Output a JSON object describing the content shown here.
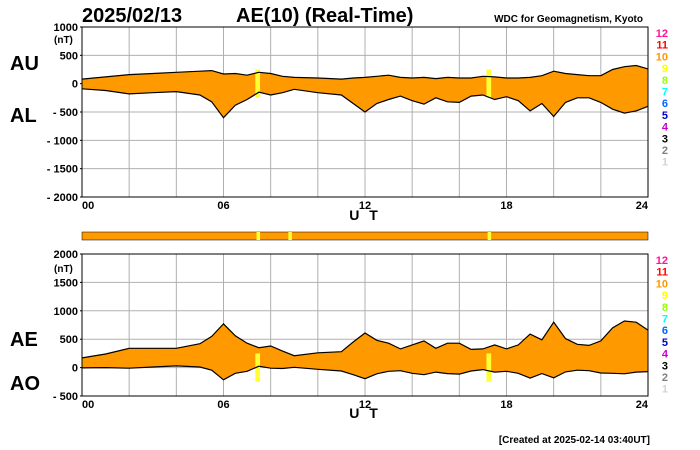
{
  "header": {
    "date": "2025/02/13",
    "title": "AE(10) (Real-Time)",
    "source": "WDC for Geomagnetism, Kyoto"
  },
  "footer": {
    "created": "[Created at 2025-02-14 03:40UT]"
  },
  "colors": {
    "fill": "#ff9900",
    "outline": "#000000",
    "highlight": "#ffff33",
    "grid": "#b0b0b0"
  },
  "station_legend": [
    {
      "label": "12",
      "color": "#ff1493"
    },
    {
      "label": "11",
      "color": "#ff0000"
    },
    {
      "label": "10",
      "color": "#ff9900"
    },
    {
      "label": "9",
      "color": "#ffff00"
    },
    {
      "label": "8",
      "color": "#99ff00"
    },
    {
      "label": "7",
      "color": "#00ffff"
    },
    {
      "label": "6",
      "color": "#0066ff"
    },
    {
      "label": "5",
      "color": "#0000cc"
    },
    {
      "label": "4",
      "color": "#cc00cc"
    },
    {
      "label": "3",
      "color": "#000000"
    },
    {
      "label": "2",
      "color": "#808080"
    },
    {
      "label": "1",
      "color": "#d3d3d3"
    }
  ],
  "chart_data": [
    {
      "type": "area",
      "id": "au_al",
      "upper_label": "AU",
      "lower_label": "AL",
      "ylabel": "(nT)",
      "xlabel": "U T",
      "xlim": [
        0,
        24
      ],
      "ylim": [
        -2000,
        1000
      ],
      "yticks": [
        1000,
        500,
        0,
        -500,
        -1000,
        -1500,
        -2000
      ],
      "ytick_labels": [
        "1000",
        "500",
        "0",
        "- 500",
        "- 1000",
        "- 1500",
        "- 2000"
      ],
      "xticks": [
        0,
        6,
        12,
        18,
        24
      ],
      "xtick_labels": [
        "00",
        "06",
        "12",
        "18",
        "24"
      ],
      "grid": true,
      "x": [
        0,
        1,
        2,
        3,
        4,
        5,
        5.5,
        6,
        6.5,
        7,
        7.5,
        8,
        8.5,
        9,
        10,
        11,
        11.5,
        12,
        12.5,
        13,
        13.5,
        14,
        14.5,
        15,
        15.5,
        16,
        16.5,
        17,
        17.5,
        18,
        18.5,
        19,
        19.5,
        20,
        20.5,
        21,
        21.5,
        22,
        22.5,
        23,
        23.5,
        24
      ],
      "series": [
        {
          "name": "AU",
          "values": [
            80,
            120,
            160,
            180,
            200,
            220,
            230,
            170,
            180,
            150,
            200,
            180,
            130,
            110,
            100,
            80,
            100,
            110,
            130,
            150,
            110,
            100,
            110,
            90,
            110,
            100,
            100,
            130,
            120,
            100,
            100,
            110,
            140,
            220,
            180,
            160,
            140,
            140,
            250,
            300,
            320,
            260
          ]
        },
        {
          "name": "AL",
          "values": [
            -90,
            -120,
            -180,
            -160,
            -140,
            -200,
            -320,
            -600,
            -380,
            -280,
            -150,
            -200,
            -160,
            -100,
            -160,
            -200,
            -350,
            -500,
            -350,
            -280,
            -220,
            -300,
            -360,
            -250,
            -320,
            -330,
            -220,
            -200,
            -280,
            -230,
            -300,
            -480,
            -350,
            -580,
            -330,
            -250,
            -250,
            -330,
            -450,
            -520,
            -480,
            -400
          ]
        }
      ],
      "highlights": [
        {
          "x_from": 7.35,
          "x_to": 7.55
        },
        {
          "x_from": 17.15,
          "x_to": 17.35
        }
      ]
    },
    {
      "type": "area",
      "id": "ae_ao",
      "upper_label": "AE",
      "lower_label": "AO",
      "ylabel": "(nT)",
      "xlabel": "U T",
      "xlim": [
        0,
        24
      ],
      "ylim": [
        -500,
        2000
      ],
      "yticks": [
        2000,
        1500,
        1000,
        500,
        0,
        -500
      ],
      "ytick_labels": [
        "2000",
        "1500",
        "1000",
        "500",
        "0",
        "- 500"
      ],
      "xticks": [
        0,
        6,
        12,
        18,
        24
      ],
      "xtick_labels": [
        "00",
        "06",
        "12",
        "18",
        "24"
      ],
      "grid": true,
      "x": [
        0,
        1,
        2,
        3,
        4,
        5,
        5.5,
        6,
        6.5,
        7,
        7.5,
        8,
        8.5,
        9,
        10,
        11,
        11.5,
        12,
        12.5,
        13,
        13.5,
        14,
        14.5,
        15,
        15.5,
        16,
        16.5,
        17,
        17.5,
        18,
        18.5,
        19,
        19.5,
        20,
        20.5,
        21,
        21.5,
        22,
        22.5,
        23,
        23.5,
        24
      ],
      "series": [
        {
          "name": "AE",
          "values": [
            170,
            240,
            340,
            340,
            340,
            420,
            550,
            770,
            560,
            430,
            350,
            380,
            290,
            210,
            260,
            280,
            450,
            610,
            480,
            430,
            330,
            400,
            470,
            340,
            430,
            430,
            320,
            330,
            400,
            330,
            400,
            590,
            490,
            800,
            510,
            410,
            390,
            470,
            700,
            820,
            800,
            660
          ]
        },
        {
          "name": "AO",
          "values": [
            -5,
            0,
            -10,
            10,
            30,
            10,
            -45,
            -215,
            -100,
            -65,
            25,
            -10,
            -15,
            5,
            -30,
            -60,
            -125,
            -195,
            -110,
            -65,
            -55,
            -100,
            -125,
            -80,
            -105,
            -115,
            -60,
            -35,
            -80,
            -65,
            -100,
            -185,
            -105,
            -180,
            -75,
            -45,
            -55,
            -95,
            -100,
            -110,
            -80,
            -70
          ]
        }
      ],
      "highlights": [
        {
          "x_from": 7.35,
          "x_to": 7.55
        },
        {
          "x_from": 17.15,
          "x_to": 17.35
        }
      ]
    }
  ],
  "status_bar": {
    "base_color": "#ff9900",
    "marks": [
      {
        "x_from": 7.4,
        "x_to": 7.55
      },
      {
        "x_from": 8.75,
        "x_to": 8.9
      },
      {
        "x_from": 17.2,
        "x_to": 17.35
      }
    ]
  }
}
